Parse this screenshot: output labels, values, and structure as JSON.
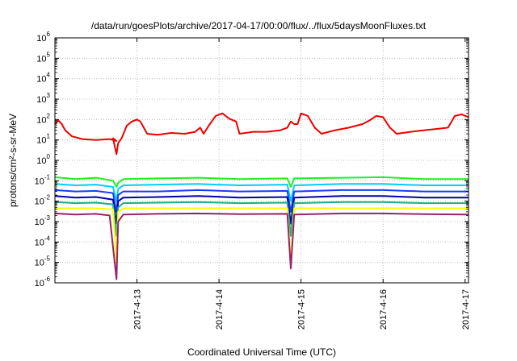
{
  "chart_data": {
    "type": "line",
    "title": "/data/run/goesPlots/archive/2017-04-17/00:00/flux/../flux/5daysMoonFluxes.txt",
    "xlabel": "Coordinated Universal Time (UTC)",
    "ylabel": "protons/cm²-s-sr-MeV",
    "y_scale": "log",
    "ylim": [
      1e-06,
      1000000.0
    ],
    "xlim": [
      "2017-04-12T00:00",
      "2017-04-17T01:00"
    ],
    "grid": true,
    "x_ticks": [
      {
        "x": "2017-04-13T00:00",
        "label": "2017-4-13"
      },
      {
        "x": "2017-04-14T00:00",
        "label": "2017-4-14"
      },
      {
        "x": "2017-04-15T00:00",
        "label": "2017-4-15"
      },
      {
        "x": "2017-04-16T00:00",
        "label": "2017-4-16"
      },
      {
        "x": "2017-04-17T00:00",
        "label": "2017-4-17"
      }
    ],
    "y_ticks": [
      {
        "exp": "-6",
        "value": 1e-06
      },
      {
        "exp": "-5",
        "value": 1e-05
      },
      {
        "exp": "-4",
        "value": 0.0001
      },
      {
        "exp": "-3",
        "value": 0.001
      },
      {
        "exp": "-2",
        "value": 0.01
      },
      {
        "exp": "-1",
        "value": 0.1
      },
      {
        "exp": "0",
        "value": 1
      },
      {
        "exp": "1",
        "value": 10
      },
      {
        "exp": "2",
        "value": 100
      },
      {
        "exp": "3",
        "value": 1000
      },
      {
        "exp": "4",
        "value": 10000
      },
      {
        "exp": "5",
        "value": 100000
      },
      {
        "exp": "6",
        "value": 1000000
      }
    ],
    "series": [
      {
        "color": "#ee0000",
        "values": [
          [
            "2017-04-12T00:00",
            60
          ],
          [
            "2017-04-12T01:00",
            90
          ],
          [
            "2017-04-12T02:00",
            60
          ],
          [
            "2017-04-12T03:00",
            30
          ],
          [
            "2017-04-12T05:00",
            15
          ],
          [
            "2017-04-12T08:00",
            11
          ],
          [
            "2017-04-12T12:00",
            10
          ],
          [
            "2017-04-12T16:00",
            11
          ],
          [
            "2017-04-12T18:00",
            9
          ],
          [
            "2017-04-12T17:00",
            12
          ],
          [
            "2017-04-12T17:30",
            5
          ],
          [
            "2017-04-12T18:00",
            2
          ],
          [
            "2017-04-12T18:30",
            7
          ],
          [
            "2017-04-12T19:30",
            12
          ],
          [
            "2017-04-12T21:00",
            50
          ],
          [
            "2017-04-12T22:30",
            80
          ],
          [
            "2017-04-13T00:00",
            100
          ],
          [
            "2017-04-13T01:00",
            80
          ],
          [
            "2017-04-13T02:00",
            40
          ],
          [
            "2017-04-13T03:00",
            20
          ],
          [
            "2017-04-13T06:00",
            18
          ],
          [
            "2017-04-13T10:00",
            22
          ],
          [
            "2017-04-13T14:00",
            20
          ],
          [
            "2017-04-13T17:00",
            25
          ],
          [
            "2017-04-13T18:30",
            40
          ],
          [
            "2017-04-13T19:30",
            20
          ],
          [
            "2017-04-13T21:00",
            50
          ],
          [
            "2017-04-13T23:00",
            150
          ],
          [
            "2017-04-14T01:00",
            200
          ],
          [
            "2017-04-14T03:00",
            110
          ],
          [
            "2017-04-14T05:00",
            80
          ],
          [
            "2017-04-14T06:00",
            20
          ],
          [
            "2017-04-14T10:00",
            25
          ],
          [
            "2017-04-14T14:00",
            25
          ],
          [
            "2017-04-14T18:00",
            30
          ],
          [
            "2017-04-14T20:00",
            40
          ],
          [
            "2017-04-14T21:00",
            80
          ],
          [
            "2017-04-14T22:00",
            60
          ],
          [
            "2017-04-14T23:00",
            60
          ],
          [
            "2017-04-15T00:00",
            200
          ],
          [
            "2017-04-15T02:00",
            150
          ],
          [
            "2017-04-15T04:00",
            40
          ],
          [
            "2017-04-15T06:00",
            20
          ],
          [
            "2017-04-15T10:00",
            30
          ],
          [
            "2017-04-15T14:00",
            40
          ],
          [
            "2017-04-15T18:00",
            60
          ],
          [
            "2017-04-15T20:00",
            90
          ],
          [
            "2017-04-15T22:00",
            150
          ],
          [
            "2017-04-16T00:00",
            130
          ],
          [
            "2017-04-16T02:00",
            40
          ],
          [
            "2017-04-16T04:00",
            20
          ],
          [
            "2017-04-16T08:00",
            25
          ],
          [
            "2017-04-16T12:00",
            30
          ],
          [
            "2017-04-16T16:00",
            35
          ],
          [
            "2017-04-16T19:00",
            40
          ],
          [
            "2017-04-16T21:00",
            150
          ],
          [
            "2017-04-16T23:00",
            180
          ],
          [
            "2017-04-17T01:00",
            130
          ]
        ]
      },
      {
        "color": "#22ee22",
        "values": [
          [
            "2017-04-12T00:00",
            0.15
          ],
          [
            "2017-04-12T06:00",
            0.12
          ],
          [
            "2017-04-12T12:00",
            0.14
          ],
          [
            "2017-04-12T17:00",
            0.1
          ],
          [
            "2017-04-12T18:00",
            0.05
          ],
          [
            "2017-04-12T18:30",
            0.08
          ],
          [
            "2017-04-12T20:00",
            0.12
          ],
          [
            "2017-04-13T06:00",
            0.13
          ],
          [
            "2017-04-13T18:00",
            0.14
          ],
          [
            "2017-04-14T06:00",
            0.12
          ],
          [
            "2017-04-14T20:00",
            0.13
          ],
          [
            "2017-04-14T21:00",
            0.05
          ],
          [
            "2017-04-14T22:00",
            0.13
          ],
          [
            "2017-04-15T12:00",
            0.14
          ],
          [
            "2017-04-16T00:00",
            0.15
          ],
          [
            "2017-04-16T12:00",
            0.12
          ],
          [
            "2017-04-17T01:00",
            0.12
          ]
        ]
      },
      {
        "color": "#00ccff",
        "values": [
          [
            "2017-04-12T00:00",
            0.07
          ],
          [
            "2017-04-12T06:00",
            0.06
          ],
          [
            "2017-04-12T12:00",
            0.065
          ],
          [
            "2017-04-12T17:00",
            0.05
          ],
          [
            "2017-04-12T18:00",
            0.01
          ],
          [
            "2017-04-12T18:30",
            0.04
          ],
          [
            "2017-04-12T20:00",
            0.06
          ],
          [
            "2017-04-13T06:00",
            0.065
          ],
          [
            "2017-04-13T18:00",
            0.07
          ],
          [
            "2017-04-14T06:00",
            0.06
          ],
          [
            "2017-04-14T20:00",
            0.065
          ],
          [
            "2017-04-14T21:00",
            0.01
          ],
          [
            "2017-04-14T22:00",
            0.06
          ],
          [
            "2017-04-15T12:00",
            0.07
          ],
          [
            "2017-04-16T00:00",
            0.07
          ],
          [
            "2017-04-16T12:00",
            0.06
          ],
          [
            "2017-04-17T01:00",
            0.06
          ]
        ]
      },
      {
        "color": "#1a3cff",
        "values": [
          [
            "2017-04-12T00:00",
            0.035
          ],
          [
            "2017-04-12T06:00",
            0.03
          ],
          [
            "2017-04-12T12:00",
            0.032
          ],
          [
            "2017-04-12T17:00",
            0.025
          ],
          [
            "2017-04-12T18:00",
            0.003
          ],
          [
            "2017-04-12T18:30",
            0.02
          ],
          [
            "2017-04-12T20:00",
            0.03
          ],
          [
            "2017-04-13T06:00",
            0.03
          ],
          [
            "2017-04-13T18:00",
            0.035
          ],
          [
            "2017-04-14T06:00",
            0.03
          ],
          [
            "2017-04-14T20:00",
            0.032
          ],
          [
            "2017-04-14T21:00",
            0.003
          ],
          [
            "2017-04-14T22:00",
            0.03
          ],
          [
            "2017-04-15T12:00",
            0.035
          ],
          [
            "2017-04-16T00:00",
            0.035
          ],
          [
            "2017-04-16T12:00",
            0.03
          ],
          [
            "2017-04-17T01:00",
            0.03
          ]
        ]
      },
      {
        "color": "#0000aa",
        "values": [
          [
            "2017-04-12T00:00",
            0.018
          ],
          [
            "2017-04-12T06:00",
            0.015
          ],
          [
            "2017-04-12T12:00",
            0.016
          ],
          [
            "2017-04-12T17:00",
            0.012
          ],
          [
            "2017-04-12T18:00",
            0.0008
          ],
          [
            "2017-04-12T18:30",
            0.01
          ],
          [
            "2017-04-12T20:00",
            0.015
          ],
          [
            "2017-04-13T06:00",
            0.016
          ],
          [
            "2017-04-13T18:00",
            0.018
          ],
          [
            "2017-04-14T06:00",
            0.015
          ],
          [
            "2017-04-14T20:00",
            0.016
          ],
          [
            "2017-04-14T21:00",
            0.0008
          ],
          [
            "2017-04-14T22:00",
            0.015
          ],
          [
            "2017-04-15T12:00",
            0.018
          ],
          [
            "2017-04-16T00:00",
            0.018
          ],
          [
            "2017-04-16T12:00",
            0.015
          ],
          [
            "2017-04-17T01:00",
            0.015
          ]
        ]
      },
      {
        "color": "#22aa88",
        "values": [
          [
            "2017-04-12T00:00",
            0.009
          ],
          [
            "2017-04-12T06:00",
            0.008
          ],
          [
            "2017-04-12T12:00",
            0.0085
          ],
          [
            "2017-04-12T17:00",
            0.007
          ],
          [
            "2017-04-12T18:00",
            0.0002
          ],
          [
            "2017-04-12T18:30",
            0.005
          ],
          [
            "2017-04-12T20:00",
            0.008
          ],
          [
            "2017-04-13T06:00",
            0.0085
          ],
          [
            "2017-04-13T18:00",
            0.009
          ],
          [
            "2017-04-14T06:00",
            0.008
          ],
          [
            "2017-04-14T20:00",
            0.0085
          ],
          [
            "2017-04-14T21:00",
            0.0002
          ],
          [
            "2017-04-14T22:00",
            0.008
          ],
          [
            "2017-04-15T12:00",
            0.009
          ],
          [
            "2017-04-16T00:00",
            0.009
          ],
          [
            "2017-04-16T12:00",
            0.008
          ],
          [
            "2017-04-17T01:00",
            0.008
          ]
        ]
      },
      {
        "color": "#ffff00",
        "values": [
          [
            "2017-04-12T00:00",
            0.0045
          ],
          [
            "2017-04-12T06:00",
            0.0045
          ],
          [
            "2017-04-12T12:00",
            0.0045
          ],
          [
            "2017-04-12T17:00",
            0.004
          ],
          [
            "2017-04-12T18:00",
            1e-05
          ],
          [
            "2017-04-12T18:30",
            0.003
          ],
          [
            "2017-04-12T20:00",
            0.0045
          ],
          [
            "2017-04-13T06:00",
            0.0045
          ],
          [
            "2017-04-13T18:00",
            0.0045
          ],
          [
            "2017-04-14T06:00",
            0.0045
          ],
          [
            "2017-04-14T20:00",
            0.0045
          ],
          [
            "2017-04-14T21:00",
            1e-05
          ],
          [
            "2017-04-14T22:00",
            0.0045
          ],
          [
            "2017-04-15T12:00",
            0.0045
          ],
          [
            "2017-04-16T00:00",
            0.0045
          ],
          [
            "2017-04-16T12:00",
            0.0045
          ],
          [
            "2017-04-17T01:00",
            0.0045
          ]
        ]
      },
      {
        "color": "#992266",
        "values": [
          [
            "2017-04-12T00:00",
            0.0025
          ],
          [
            "2017-04-12T06:00",
            0.0022
          ],
          [
            "2017-04-12T12:00",
            0.0024
          ],
          [
            "2017-04-12T16:00",
            0.002
          ],
          [
            "2017-04-12T18:00",
            1.5e-06
          ],
          [
            "2017-04-12T18:30",
            0.001
          ],
          [
            "2017-04-12T20:00",
            0.0022
          ],
          [
            "2017-04-13T06:00",
            0.0024
          ],
          [
            "2017-04-13T18:00",
            0.0025
          ],
          [
            "2017-04-14T06:00",
            0.0023
          ],
          [
            "2017-04-14T20:00",
            0.0024
          ],
          [
            "2017-04-14T21:00",
            5e-06
          ],
          [
            "2017-04-14T22:00",
            0.0022
          ],
          [
            "2017-04-15T12:00",
            0.0025
          ],
          [
            "2017-04-16T00:00",
            0.0025
          ],
          [
            "2017-04-16T12:00",
            0.0023
          ],
          [
            "2017-04-17T01:00",
            0.0022
          ]
        ]
      }
    ]
  }
}
